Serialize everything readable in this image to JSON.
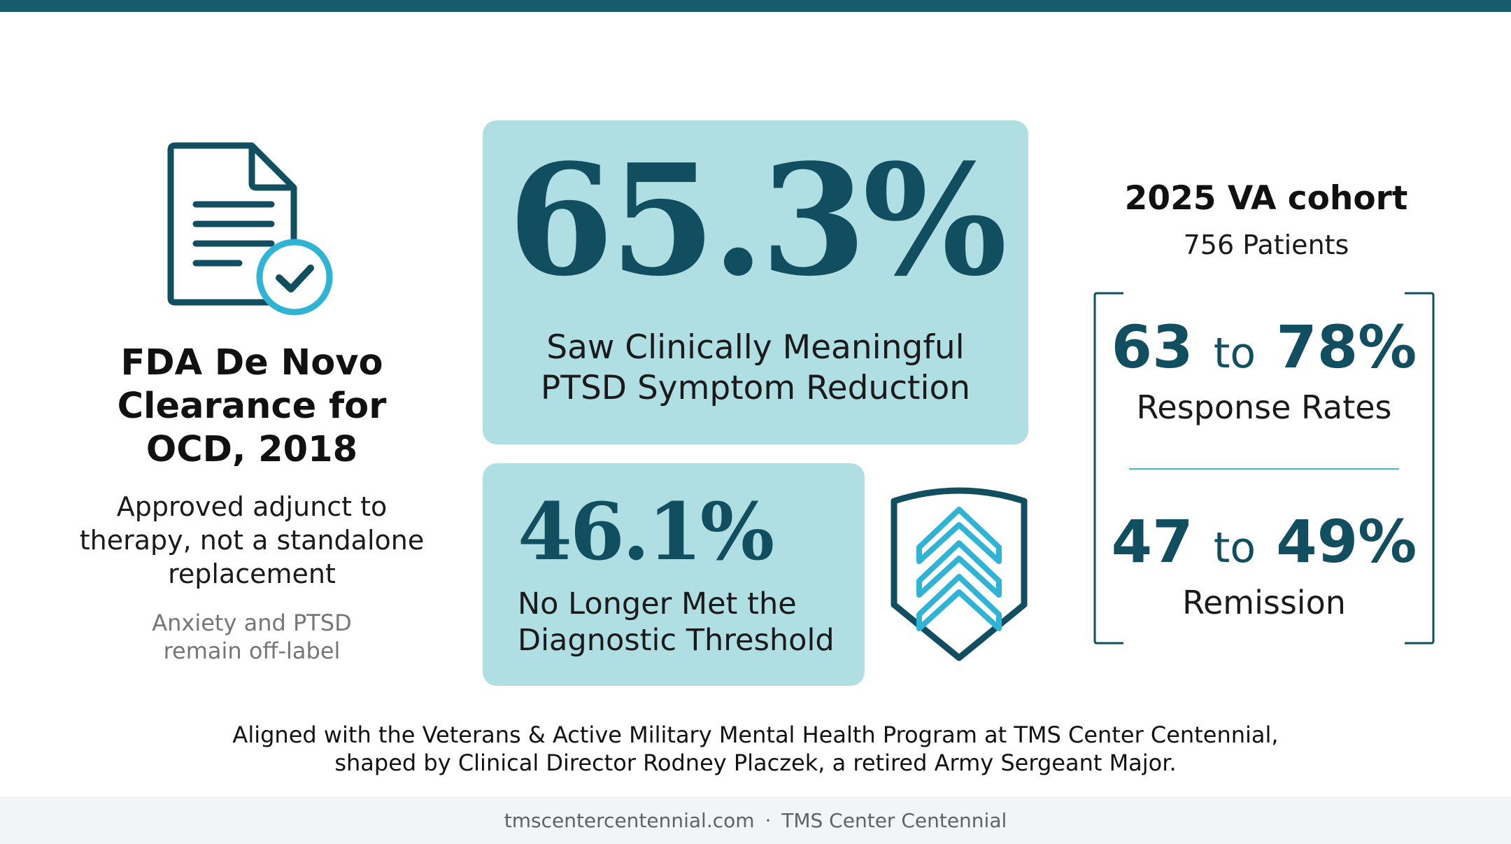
{
  "colors": {
    "accent_dark": "#114e60",
    "accent_light": "#3fb7d4",
    "card_bg": "#b0dfe3",
    "top_bar": "#175a6c"
  },
  "left": {
    "icon": "document-check-icon",
    "title_line1": "FDA De Novo",
    "title_line2": "Clearance for",
    "title_line3": "OCD, 2018",
    "subtitle_line1": "Approved adjunct to",
    "subtitle_line2": "therapy, not a standalone",
    "subtitle_line3": "replacement",
    "note_line1": "Anxiety and PTSD",
    "note_line2": "remain off-label"
  },
  "main_stat": {
    "value": "65.3%",
    "label_line1": "Saw Clinically Meaningful",
    "label_line2": "PTSD Symptom Reduction"
  },
  "second_stat": {
    "value": "46.1%",
    "label_line1": "No Longer Met the",
    "label_line2": "Diagnostic Threshold",
    "icon": "military-chevron-shield-icon"
  },
  "cohort": {
    "title": "2025 VA cohort",
    "subtitle": "756 Patients",
    "response": {
      "low": "63",
      "to": "to",
      "high": "78%",
      "label": "Response Rates"
    },
    "remission": {
      "low": "47",
      "to": "to",
      "high": "49%",
      "label": "Remission"
    }
  },
  "footer": {
    "aligned_line1": "Aligned with the Veterans & Active Military Mental Health Program at TMS Center Centennial,",
    "aligned_line2": "shaped by Clinical Director Rodney Placzek, a retired Army Sergeant Major.",
    "site": "tmscentercentennial.com",
    "separator": "·",
    "brand": "TMS Center Centennial"
  }
}
